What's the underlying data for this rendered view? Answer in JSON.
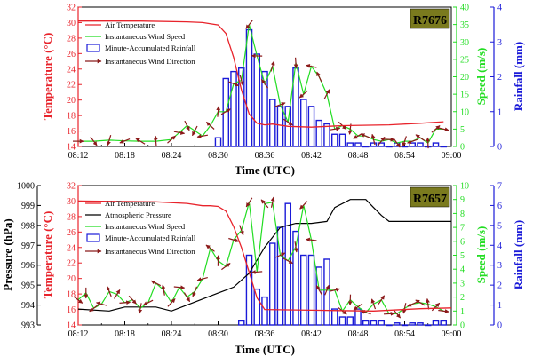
{
  "chart_data": [
    {
      "type": "line",
      "station": "R7676",
      "xlabel": "Time (UTC)",
      "x_ticks": [
        "08:12",
        "08:18",
        "08:24",
        "08:30",
        "08:36",
        "08:42",
        "08:48",
        "08:54",
        "09:00"
      ],
      "x_range_minutes": [
        0,
        48
      ],
      "left_axis": {
        "label": "Temperature (°C)",
        "range": [
          14,
          32
        ],
        "ticks": [
          "14",
          "16",
          "18",
          "20",
          "22",
          "24",
          "26",
          "28",
          "30",
          "32"
        ]
      },
      "right_axes": [
        {
          "label": "Speed (m/s)",
          "range": [
            0,
            40
          ],
          "ticks": [
            "0",
            "5",
            "10",
            "15",
            "20",
            "25",
            "30",
            "35",
            "40"
          ]
        },
        {
          "label": "Rainfall (mm)",
          "range": [
            0,
            4
          ],
          "ticks": [
            "0",
            "1",
            "2",
            "3",
            "4"
          ]
        }
      ],
      "legend": [
        "Air Temperature",
        "Instantaneous Wind Speed",
        "Minute-Accumulated Rainfall",
        "Instantaneous Wind Direction"
      ],
      "legend_position": "top-left",
      "colors": {
        "temperature": "#e8232b",
        "wind_speed": "#22dd22",
        "rainfall": "#1a1ad8",
        "wind_direction": "#8b1a1a",
        "station_badge": "#7a7a1e"
      },
      "series": {
        "temperature": {
          "x": [
            0,
            8,
            14,
            16,
            18,
            19,
            20,
            21,
            22,
            23,
            24,
            25,
            27,
            30,
            34,
            40,
            44,
            47
          ],
          "y": [
            30.2,
            30.2,
            30.1,
            30.0,
            29.7,
            28.6,
            25.5,
            21.3,
            18.2,
            17.0,
            16.8,
            16.9,
            16.6,
            16.5,
            16.7,
            16.8,
            17.0,
            17.2
          ]
        },
        "wind_speed": {
          "x": [
            0,
            2,
            4,
            6,
            8,
            10,
            12,
            13,
            14,
            15,
            16,
            17,
            18,
            19,
            20,
            21,
            22,
            23,
            24,
            25,
            26,
            27,
            28,
            29,
            30,
            31,
            32,
            33,
            34,
            35,
            36,
            37,
            38,
            39,
            40,
            41,
            42,
            43,
            44,
            45,
            46,
            47
          ],
          "y": [
            1.5,
            1.5,
            1.8,
            1.6,
            1.5,
            1.5,
            2.0,
            4.0,
            6.0,
            4.5,
            3.0,
            6.0,
            10.0,
            10.0,
            18.0,
            19.0,
            35.0,
            26.0,
            18.0,
            23.0,
            12.0,
            7.0,
            24.0,
            15.0,
            23.0,
            20.0,
            15.0,
            5.0,
            6.0,
            5.0,
            3.0,
            3.0,
            2.0,
            1.5,
            2.0,
            1.0,
            1.5,
            1.5,
            2.5,
            1.0,
            5.0,
            5.0
          ]
        },
        "rainfall": {
          "x": [
            18,
            19,
            20,
            21,
            22,
            23,
            24,
            25,
            26,
            27,
            28,
            29,
            30,
            31,
            32,
            33,
            34,
            35,
            36,
            37,
            38,
            39,
            40,
            41,
            42,
            43,
            44,
            45,
            46,
            47
          ],
          "y": [
            0.25,
            1.95,
            2.15,
            2.25,
            3.35,
            2.65,
            2.15,
            1.35,
            1.15,
            1.15,
            2.25,
            1.35,
            1.15,
            0.75,
            0.65,
            0.35,
            0.35,
            0.1,
            0.1,
            0.0,
            0.1,
            0.1,
            0.0,
            0.1,
            0.0,
            0.1,
            0.1,
            0.0,
            0.1,
            0.0
          ]
        }
      }
    },
    {
      "type": "line",
      "station": "R7657",
      "xlabel": "Time (UTC)",
      "x_ticks": [
        "08:12",
        "08:18",
        "08:24",
        "08:30",
        "08:36",
        "08:42",
        "08:48",
        "08:54",
        "09:00"
      ],
      "x_range_minutes": [
        0,
        48
      ],
      "left_axes": [
        {
          "label": "Temperature (°C)",
          "range": [
            14,
            32
          ],
          "ticks": [
            "14",
            "16",
            "18",
            "20",
            "22",
            "24",
            "26",
            "28",
            "30",
            "32"
          ]
        },
        {
          "label": "Pressure (hPa)",
          "range": [
            993,
            1000
          ],
          "ticks": [
            "993",
            "994",
            "995",
            "996",
            "997",
            "998",
            "999",
            "1000"
          ]
        }
      ],
      "right_axes": [
        {
          "label": "Speed (m/s)",
          "range": [
            0,
            10
          ],
          "ticks": [
            "0",
            "1",
            "2",
            "3",
            "4",
            "5",
            "6",
            "7",
            "8",
            "9",
            "10"
          ]
        },
        {
          "label": "Rainfall (mm)",
          "range": [
            0,
            7
          ],
          "ticks": [
            "0",
            "1",
            "2",
            "3",
            "4",
            "5",
            "6",
            "7"
          ]
        }
      ],
      "legend": [
        "Air Temperature",
        "Atmospheric Pressure",
        "Instantaneous Wind Speed",
        "Minute-Accumulated Rainfall",
        "Instantaneous Wind Direction"
      ],
      "legend_position": "top-left",
      "colors": {
        "temperature": "#e8232b",
        "pressure": "#000000",
        "wind_speed": "#22dd22",
        "rainfall": "#1a1ad8",
        "wind_direction": "#8b1a1a",
        "station_badge": "#7a7a1e"
      },
      "series": {
        "temperature": {
          "x": [
            0,
            10,
            14,
            16,
            17,
            18,
            19,
            20,
            21,
            22,
            23,
            24,
            30,
            38,
            44,
            48
          ],
          "y": [
            30.0,
            29.9,
            29.7,
            29.4,
            29.4,
            29.3,
            28.7,
            26.7,
            24.0,
            20.8,
            17.5,
            16.0,
            15.9,
            15.8,
            16.1,
            16.2
          ]
        },
        "pressure": {
          "x": [
            0,
            4,
            6,
            8,
            10,
            12,
            14,
            16,
            18,
            20,
            22,
            24,
            26,
            28,
            30,
            32,
            33,
            35,
            37,
            38,
            39,
            40,
            42,
            44,
            48
          ],
          "y": [
            993.8,
            993.7,
            993.9,
            993.9,
            993.9,
            993.7,
            994.0,
            994.3,
            994.6,
            994.9,
            995.6,
            996.9,
            997.9,
            998.1,
            998.1,
            998.2,
            998.9,
            999.3,
            999.3,
            998.9,
            998.5,
            998.2,
            998.2,
            998.2,
            998.2
          ]
        },
        "wind_speed": {
          "x": [
            0,
            1,
            2,
            3,
            4,
            5,
            6,
            7,
            8,
            9,
            10,
            11,
            12,
            13,
            14,
            15,
            16,
            17,
            18,
            19,
            20,
            21,
            22,
            23,
            24,
            25,
            26,
            27,
            28,
            29,
            30,
            31,
            32,
            33,
            34,
            35,
            36,
            37,
            38,
            39,
            40,
            41,
            42,
            43,
            44,
            45,
            46,
            47
          ],
          "y": [
            1.8,
            2.3,
            1.2,
            1.5,
            2.4,
            2.2,
            1.6,
            1.8,
            1.2,
            1.6,
            3.0,
            2.5,
            1.6,
            2.7,
            2.0,
            2.4,
            3.3,
            5.5,
            4.6,
            4.2,
            6.1,
            6.8,
            8.8,
            3.8,
            8.7,
            8.8,
            5.0,
            4.6,
            5.6,
            8.6,
            6.1,
            2.5,
            2.5,
            2.5,
            1.0,
            1.8,
            1.3,
            0.9,
            1.5,
            1.8,
            0.8,
            0.8,
            1.2,
            1.5,
            1.6,
            1.5,
            1.3,
            1.0
          ]
        },
        "rainfall": {
          "x": [
            21,
            22,
            23,
            24,
            25,
            26,
            27,
            28,
            29,
            30,
            31,
            32,
            33,
            34,
            35,
            36,
            37,
            38,
            39,
            40,
            41,
            42,
            43,
            44,
            45,
            46,
            47
          ],
          "y": [
            0.2,
            3.5,
            1.8,
            1.4,
            4.1,
            4.9,
            6.1,
            4.7,
            3.5,
            3.5,
            2.9,
            3.3,
            0.8,
            0.4,
            0.4,
            0.8,
            0.2,
            0.2,
            0.2,
            0.0,
            0.1,
            0.0,
            0.1,
            0.1,
            0.0,
            0.2,
            0.2
          ]
        }
      }
    }
  ]
}
